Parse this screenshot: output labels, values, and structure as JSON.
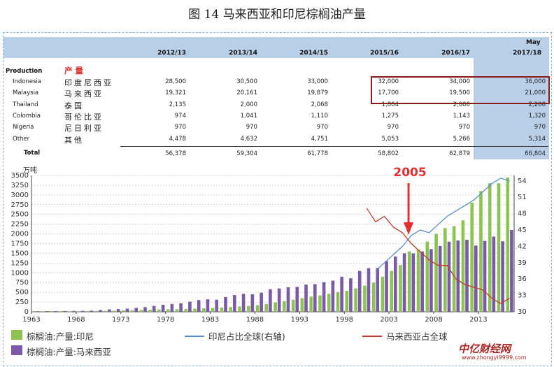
{
  "figure_title": "图 14 马来西亚和印尼棕榈油产量",
  "table": {
    "production_en": "Production",
    "production_zh": "产 量",
    "may_label": "May",
    "years": [
      "2012/13",
      "2013/14",
      "2014/15",
      "2015/16",
      "2016/17",
      "2017/18"
    ],
    "rows": [
      {
        "en": "Indonesia",
        "zh": "印度尼西亚",
        "values": [
          "28,500",
          "30,500",
          "33,000",
          "32,000",
          "34,000",
          "36,000"
        ]
      },
      {
        "en": "Malaysia",
        "zh": "马来西亚",
        "values": [
          "19,321",
          "20,161",
          "19,879",
          "17,700",
          "19,500",
          "21,000"
        ]
      },
      {
        "en": "Thailand",
        "zh": "泰国",
        "values": [
          "2,135",
          "2,000",
          "2,068",
          "1,804",
          "2,000",
          "2,200"
        ]
      },
      {
        "en": "Colombia",
        "zh": "哥伦比亚",
        "values": [
          "974",
          "1,041",
          "1,110",
          "1,275",
          "1,143",
          "1,320"
        ]
      },
      {
        "en": "Nigeria",
        "zh": "尼日利亚",
        "values": [
          "970",
          "970",
          "970",
          "970",
          "970",
          "970"
        ]
      },
      {
        "en": "Other",
        "zh": "其他",
        "values": [
          "4,478",
          "4,632",
          "4,751",
          "5,053",
          "5,266",
          "5,314"
        ]
      }
    ],
    "total_label": "Total",
    "totals": [
      "56,378",
      "59,304",
      "61,778",
      "58,802",
      "62,879",
      "66,804"
    ]
  },
  "colors": {
    "indonesia_bar": "#8dc451",
    "malaysia_bar": "#7a5aa8",
    "indonesia_share_line": "#5b8fd0",
    "malaysia_share_line": "#c0392b",
    "annotation": "#e23030",
    "highlight_box": "#8b1a1a"
  },
  "chart_data": {
    "type": "bar",
    "y_unit": "万吨",
    "x": [
      1963,
      1964,
      1965,
      1966,
      1967,
      1968,
      1969,
      1970,
      1971,
      1972,
      1973,
      1974,
      1975,
      1976,
      1977,
      1978,
      1979,
      1980,
      1981,
      1982,
      1983,
      1984,
      1985,
      1986,
      1987,
      1988,
      1989,
      1990,
      1991,
      1992,
      1993,
      1994,
      1995,
      1996,
      1997,
      1998,
      1999,
      2000,
      2001,
      2002,
      2003,
      2004,
      2005,
      2006,
      2007,
      2008,
      2009,
      2010,
      2011,
      2012,
      2013,
      2014,
      2015,
      2016
    ],
    "x_ticks": [
      "1963",
      "1968",
      "1973",
      "1978",
      "1983",
      "1988",
      "1993",
      "1998",
      "2003",
      "2008",
      "2013"
    ],
    "ylim": [
      0,
      3500
    ],
    "y_ticks": [
      "0",
      "250",
      "500",
      "750",
      "1000",
      "1250",
      "1500",
      "1750",
      "2000",
      "2250",
      "2500",
      "2750",
      "3000",
      "3250",
      "3500"
    ],
    "y2lim": [
      30,
      55
    ],
    "y2_ticks": [
      "30",
      "33",
      "36",
      "39",
      "42",
      "45",
      "48",
      "51",
      "54"
    ],
    "series": [
      {
        "name": "棕榈油:产量:印尼",
        "type": "bar",
        "values": [
          15,
          15,
          15,
          15,
          16,
          18,
          19,
          22,
          25,
          29,
          36,
          40,
          50,
          55,
          60,
          65,
          68,
          72,
          80,
          88,
          100,
          110,
          120,
          135,
          150,
          170,
          200,
          240,
          270,
          310,
          350,
          390,
          420,
          460,
          500,
          540,
          600,
          670,
          750,
          900,
          1050,
          1200,
          1550,
          1600,
          1800,
          2000,
          2150,
          2200,
          2350,
          2800,
          3100,
          3300,
          3300,
          3450
        ]
      },
      {
        "name": "棕榈油:产量:马来西亚",
        "type": "bar",
        "values": [
          15,
          17,
          18,
          20,
          22,
          25,
          30,
          45,
          60,
          70,
          80,
          100,
          120,
          150,
          180,
          200,
          220,
          260,
          300,
          320,
          310,
          380,
          430,
          460,
          450,
          490,
          580,
          600,
          630,
          640,
          700,
          710,
          760,
          800,
          900,
          860,
          1050,
          1120,
          1130,
          1300,
          1420,
          1500,
          1500,
          1550,
          1610,
          1690,
          1800,
          1830,
          1850,
          1700,
          1820,
          1930,
          1810,
          2100
        ]
      },
      {
        "name": "印尼占比全球(右轴)",
        "type": "line",
        "axis": "right",
        "x": [
          2001,
          2002,
          2003,
          2004,
          2005,
          2006,
          2007,
          2008,
          2009,
          2010,
          2011,
          2012,
          2013,
          2014,
          2015,
          2016
        ],
        "values": [
          37.5,
          39,
          40.5,
          42,
          44,
          45,
          44.5,
          46,
          47.5,
          48.5,
          49.5,
          50.5,
          52,
          53.5,
          54.5,
          54
        ]
      },
      {
        "name": "马来西亚占全球",
        "type": "line",
        "axis": "right",
        "x": [
          2000,
          2001,
          2002,
          2003,
          2004,
          2005,
          2006,
          2007,
          2008,
          2009,
          2010,
          2011,
          2012,
          2013,
          2014,
          2015,
          2016
        ],
        "values": [
          49,
          46.5,
          47.5,
          45.5,
          44.5,
          42.5,
          41,
          39.5,
          38.5,
          38.5,
          36,
          35,
          34.5,
          34,
          32.5,
          31.5,
          32.5
        ]
      }
    ],
    "annotation": {
      "label": "2005",
      "x": 2005
    },
    "legend_position": "bottom"
  },
  "legend": {
    "ind_bar": "棕榈油:产量:印尼",
    "mal_bar": "棕榈油:产量:马来西亚",
    "ind_line": "印尼占比全球(右轴)",
    "mal_line": "马来西亚占全球"
  },
  "watermark": {
    "text": "中亿财经网",
    "url": "www.zhongyi9999.com"
  }
}
